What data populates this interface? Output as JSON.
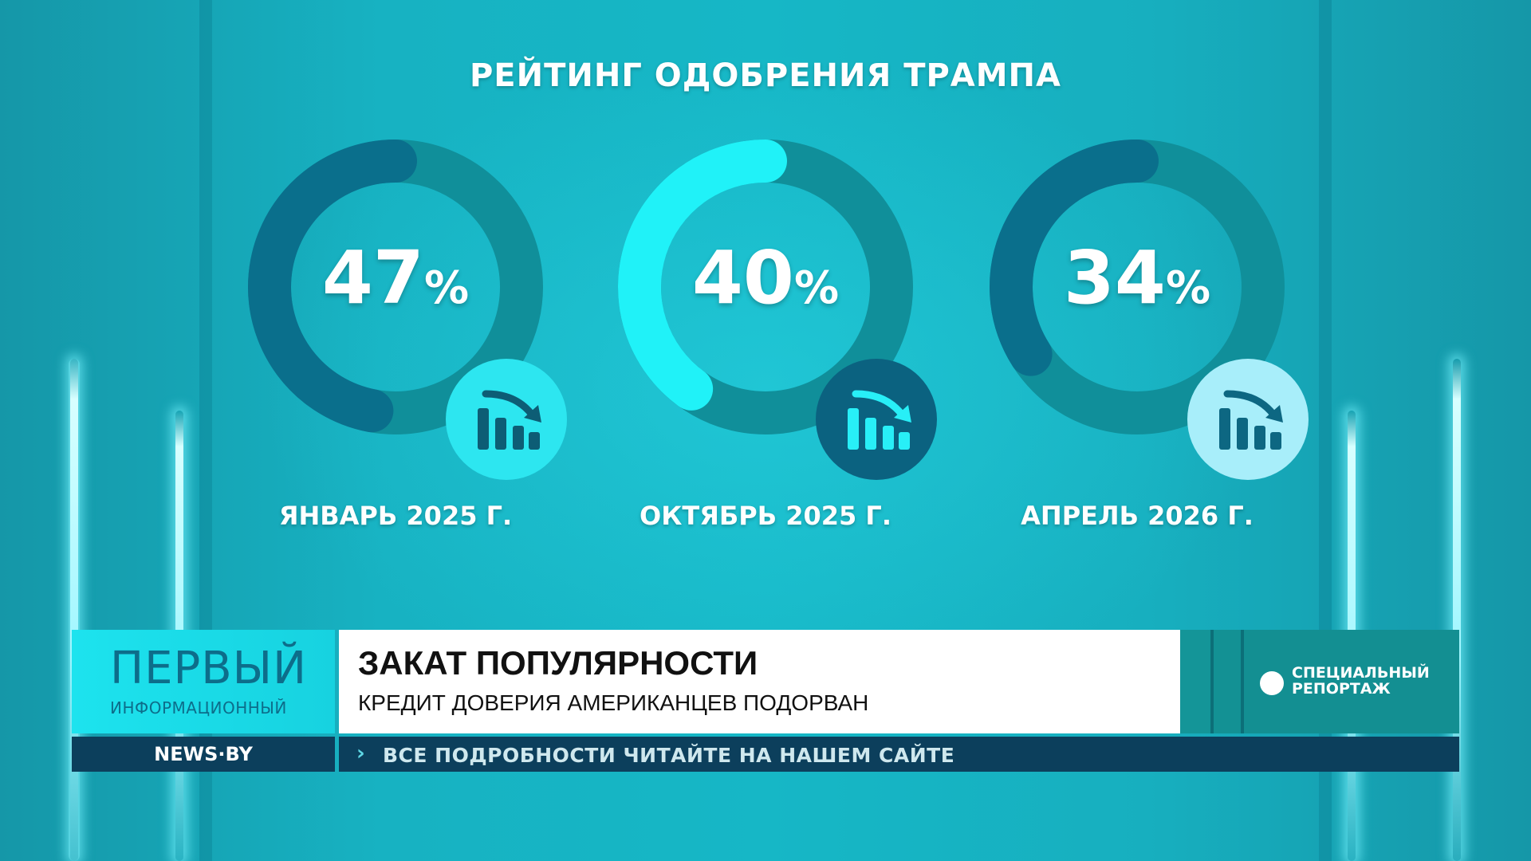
{
  "chart_data": {
    "type": "donut",
    "title": "РЕЙТИНГ ОДОБРЕНИЯ ТРАМПА",
    "unit": "%",
    "items": [
      {
        "label": "ЯНВАРЬ 2025 Г.",
        "value": 47,
        "display": "47",
        "arc_color": "#0a6f8c",
        "badge_color": "#2de6f0",
        "icon_color": "#0d5d75"
      },
      {
        "label": "ОКТЯБРЬ 2025 Г.",
        "value": 40,
        "display": "40",
        "arc_color": "#20f2f8",
        "badge_color": "#0b6280",
        "icon_color": "#28eff7"
      },
      {
        "label": "АПРЕЛЬ 2026 Г.",
        "value": 34,
        "display": "34",
        "arc_color": "#0a6f8c",
        "badge_color": "#a8eefa",
        "icon_color": "#0d6782"
      }
    ],
    "track_color": "#108f9a"
  },
  "icons": [
    "bar-chart-down-icon"
  ],
  "lower_third": {
    "logo_main": "ПЕРВЫЙ",
    "logo_sub": "ИНФОРМАЦИОННЫЙ",
    "headline": "ЗАКАТ ПОПУЛЯРНОСТИ",
    "subheadline": "КРЕДИТ ДОВЕРИЯ АМЕРИКАНЦЕВ ПОДОРВАН",
    "special_line1": "СПЕЦИАЛЬНЫЙ",
    "special_line2": "РЕПОРТАЖ",
    "site": "NEWS·BY",
    "ticker_chevron": "›",
    "ticker": "ВСЕ ПОДРОБНОСТИ ЧИТАЙТЕ НА НАШЕМ САЙТЕ"
  }
}
